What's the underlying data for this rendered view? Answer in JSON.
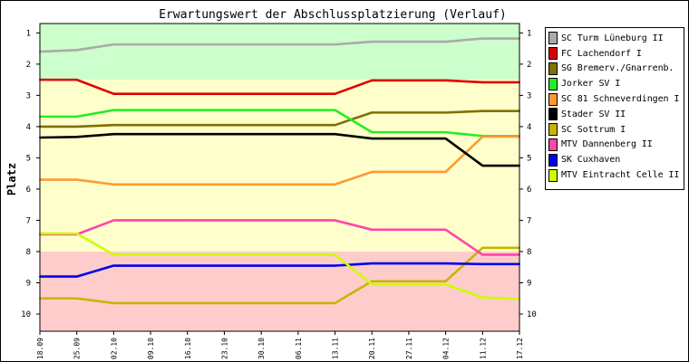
{
  "chart_data": {
    "type": "line",
    "title": "Erwartungswert der Abschlussplatzierung (Verlauf)",
    "ylabel": "Platz",
    "xlabel": "",
    "ylim": [
      0.7,
      10.55
    ],
    "y_inverted": true,
    "yticks": [
      1,
      2,
      3,
      4,
      5,
      6,
      7,
      8,
      9,
      10
    ],
    "grid": false,
    "legend_position": "right",
    "categories": [
      "18.09",
      "25.09",
      "02.10",
      "09.10",
      "16.10",
      "23.10",
      "30.10",
      "06.11",
      "13.11",
      "20.11",
      "27.11",
      "04.12",
      "11.12",
      "17.12"
    ],
    "zones": [
      {
        "color": "#ccffcc",
        "from": 0.7,
        "to": 2.5
      },
      {
        "color": "#ffffcc",
        "from": 2.5,
        "to": 8.0
      },
      {
        "color": "#ffcccc",
        "from": 8.0,
        "to": 10.55
      }
    ],
    "series": [
      {
        "name": "SC Turm Lüneburg II",
        "color": "#aaaaaa",
        "values": [
          1.6,
          1.55,
          1.37,
          1.37,
          1.37,
          1.37,
          1.37,
          1.37,
          1.37,
          1.28,
          1.28,
          1.28,
          1.18,
          1.18
        ]
      },
      {
        "name": "FC Lachendorf I",
        "color": "#dd0000",
        "values": [
          2.5,
          2.5,
          2.95,
          2.95,
          2.95,
          2.95,
          2.95,
          2.95,
          2.95,
          2.52,
          2.52,
          2.52,
          2.58,
          2.58
        ]
      },
      {
        "name": "SG Bremerv./Gnarrenb.",
        "color": "#807000",
        "values": [
          4.0,
          4.0,
          3.95,
          3.95,
          3.95,
          3.95,
          3.95,
          3.95,
          3.95,
          3.55,
          3.55,
          3.55,
          3.5,
          3.5
        ]
      },
      {
        "name": "Jorker SV I",
        "color": "#22ee22",
        "values": [
          3.68,
          3.68,
          3.47,
          3.47,
          3.47,
          3.47,
          3.47,
          3.47,
          3.47,
          4.18,
          4.18,
          4.18,
          4.3,
          4.3
        ]
      },
      {
        "name": "SC 81 Schneverdingen I",
        "color": "#ff9933",
        "values": [
          5.7,
          5.7,
          5.85,
          5.85,
          5.85,
          5.85,
          5.85,
          5.85,
          5.85,
          5.45,
          5.45,
          5.45,
          4.32,
          4.32
        ]
      },
      {
        "name": "Stader SV II",
        "color": "#000000",
        "values": [
          4.35,
          4.33,
          4.24,
          4.24,
          4.24,
          4.24,
          4.24,
          4.24,
          4.24,
          4.38,
          4.38,
          4.38,
          5.25,
          5.25
        ]
      },
      {
        "name": "SC Sottrum I",
        "color": "#c8b400",
        "values": [
          9.5,
          9.5,
          9.65,
          9.65,
          9.65,
          9.65,
          9.65,
          9.65,
          9.65,
          8.95,
          8.95,
          8.95,
          7.88,
          7.88
        ]
      },
      {
        "name": "MTV Dannenberg II",
        "color": "#ff44aa",
        "values": [
          7.45,
          7.45,
          7.0,
          7.0,
          7.0,
          7.0,
          7.0,
          7.0,
          7.0,
          7.3,
          7.3,
          7.3,
          8.1,
          8.1
        ]
      },
      {
        "name": "SK Cuxhaven",
        "color": "#0000ee",
        "values": [
          8.8,
          8.8,
          8.45,
          8.45,
          8.45,
          8.45,
          8.45,
          8.45,
          8.45,
          8.38,
          8.38,
          8.38,
          8.4,
          8.4
        ]
      },
      {
        "name": "MTV Eintracht Celle II",
        "color": "#ccff00",
        "values": [
          7.42,
          7.42,
          8.1,
          8.1,
          8.1,
          8.1,
          8.1,
          8.1,
          8.1,
          9.05,
          9.05,
          9.05,
          9.47,
          9.52
        ]
      }
    ]
  }
}
